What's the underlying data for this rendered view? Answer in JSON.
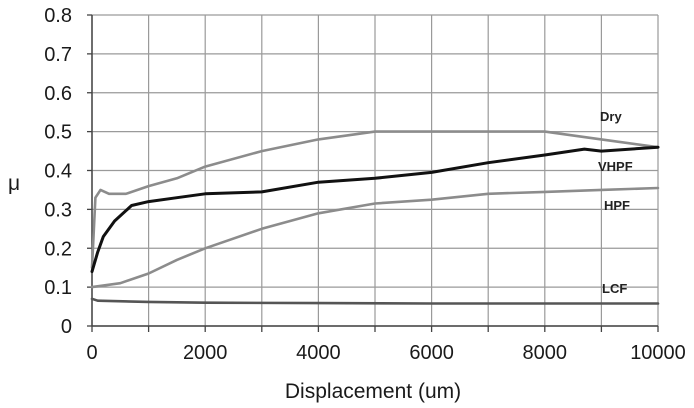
{
  "chart_data": {
    "type": "line",
    "title": "",
    "xlabel": "Displacement (um)",
    "ylabel": "μ",
    "xlim": [
      0,
      10000
    ],
    "ylim": [
      0,
      0.8
    ],
    "x_ticks": [
      0,
      2000,
      4000,
      6000,
      8000,
      10000
    ],
    "y_ticks": [
      "0",
      "0.1",
      "0.2",
      "0.3",
      "0.4",
      "0.5",
      "0.6",
      "0.7",
      "0.8"
    ],
    "grid": true,
    "legend": "none (series labeled inline at right end)",
    "series": [
      {
        "name": "Dry",
        "color": "#8c8c8c",
        "x": [
          0,
          60,
          150,
          300,
          600,
          1000,
          1500,
          2000,
          3000,
          4000,
          5000,
          6000,
          7000,
          8000,
          9000,
          10000
        ],
        "y": [
          0.15,
          0.33,
          0.35,
          0.34,
          0.34,
          0.36,
          0.38,
          0.41,
          0.45,
          0.48,
          0.5,
          0.5,
          0.5,
          0.5,
          0.48,
          0.46
        ]
      },
      {
        "name": "VHPF",
        "color": "#111111",
        "x": [
          0,
          100,
          200,
          400,
          700,
          1000,
          1500,
          2000,
          3000,
          4000,
          5000,
          6000,
          7000,
          8000,
          8700,
          9000,
          10000
        ],
        "y": [
          0.14,
          0.19,
          0.23,
          0.27,
          0.31,
          0.32,
          0.33,
          0.34,
          0.345,
          0.37,
          0.38,
          0.395,
          0.42,
          0.44,
          0.455,
          0.45,
          0.46
        ]
      },
      {
        "name": "HPF",
        "color": "#8c8c8c",
        "x": [
          0,
          500,
          1000,
          1500,
          2000,
          3000,
          4000,
          5000,
          6000,
          7000,
          8000,
          9000,
          10000
        ],
        "y": [
          0.1,
          0.11,
          0.135,
          0.17,
          0.2,
          0.25,
          0.29,
          0.315,
          0.325,
          0.34,
          0.345,
          0.35,
          0.355
        ]
      },
      {
        "name": "LCF",
        "color": "#555555",
        "x": [
          0,
          100,
          1000,
          2000,
          4000,
          6000,
          8000,
          10000
        ],
        "y": [
          0.07,
          0.065,
          0.062,
          0.06,
          0.059,
          0.058,
          0.058,
          0.058
        ]
      }
    ],
    "series_labels": [
      "Dry",
      "VHPF",
      "HPF",
      "LCF"
    ]
  }
}
